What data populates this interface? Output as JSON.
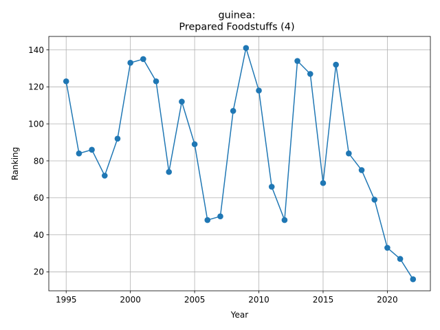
{
  "chart_data": {
    "type": "line",
    "title_line1": "guinea:",
    "title_line2": "Prepared Foodstuffs (4)",
    "xlabel": "Year",
    "ylabel": "Ranking",
    "xlim": [
      1993.65,
      1996.35
    ],
    "ylim": [
      9.75,
      147.25
    ],
    "xticks": [
      1995,
      2000,
      2005,
      2010,
      2015,
      2020
    ],
    "yticks": [
      20,
      40,
      60,
      80,
      100,
      120,
      140
    ],
    "grid": true,
    "color": "#1f77b4",
    "x": [
      1995,
      1996,
      1997,
      1998,
      1999,
      2000,
      2001,
      2002,
      2003,
      2004,
      2005,
      2006,
      2007,
      2008,
      2009,
      2010,
      2011,
      2012,
      2013,
      2014,
      2015,
      2016,
      2017,
      2018,
      2019,
      2020,
      2021,
      2022
    ],
    "y": [
      123,
      84,
      86,
      72,
      92,
      133,
      135,
      123,
      74,
      112,
      89,
      48,
      50,
      107,
      141,
      118,
      66,
      48,
      134,
      127,
      68,
      132,
      84,
      75,
      59,
      33,
      27,
      16
    ]
  }
}
